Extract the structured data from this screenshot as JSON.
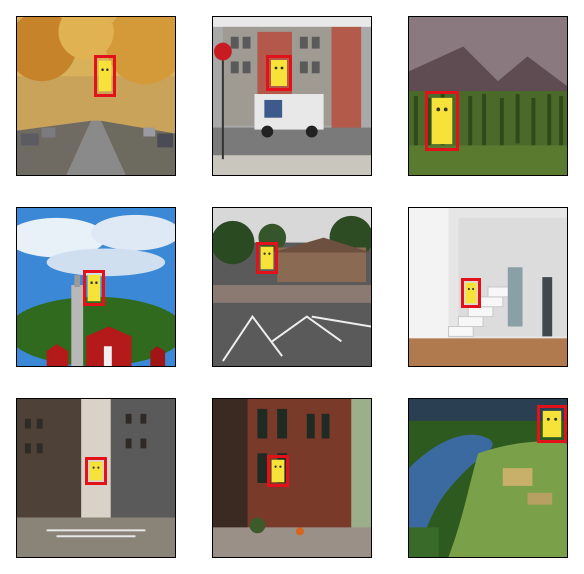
{
  "figure": {
    "tiles": [
      {
        "scene": "autumn-street",
        "detection": {
          "label": "pikachu"
        }
      },
      {
        "scene": "city-street-with-truck",
        "detection": {
          "label": "pikachu"
        }
      },
      {
        "scene": "mountain-forest",
        "detection": {
          "label": "pikachu"
        }
      },
      {
        "scene": "red-barn-under-sky",
        "detection": {
          "label": "pikachu"
        }
      },
      {
        "scene": "parking-lot",
        "detection": {
          "label": "pikachu"
        }
      },
      {
        "scene": "modern-staircase-interior",
        "detection": {
          "label": "pikachu"
        }
      },
      {
        "scene": "downtown-street",
        "detection": {
          "label": "pikachu"
        }
      },
      {
        "scene": "brick-alley",
        "detection": {
          "label": "pikachu"
        }
      },
      {
        "scene": "river-valley",
        "detection": {
          "label": "pikachu"
        }
      }
    ],
    "colors": {
      "bbox": "#e3121a",
      "pikachu": "#f7e23a"
    }
  }
}
